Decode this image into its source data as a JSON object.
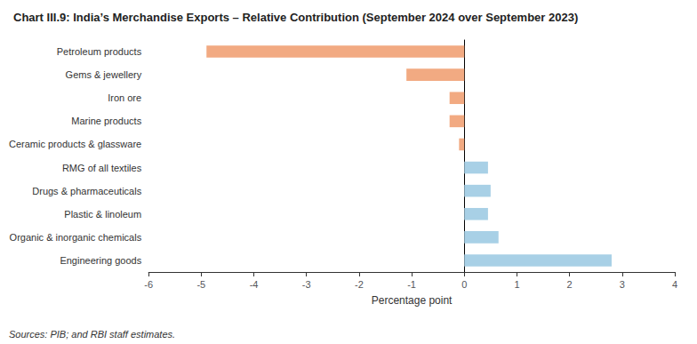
{
  "chart_data": {
    "type": "bar",
    "orientation": "horizontal",
    "title": "Chart III.9: India’s Merchandise Exports – Relative Contribution (September 2024 over September 2023)",
    "categories": [
      "Engineering goods",
      "Organic & inorganic chemicals",
      "Plastic & linoleum",
      "Drugs & pharmaceuticals",
      "RMG of all textiles",
      "Ceramic products & glassware",
      "Marine products",
      "Iron ore",
      "Gems & jewellery",
      "Petroleum products"
    ],
    "values": [
      2.8,
      0.65,
      0.45,
      0.5,
      0.45,
      -0.1,
      -0.28,
      -0.28,
      -1.1,
      -4.9
    ],
    "colors": [
      "#a8d0e6",
      "#a8d0e6",
      "#a8d0e6",
      "#a8d0e6",
      "#a8d0e6",
      "#f2aa82",
      "#f2aa82",
      "#f2aa82",
      "#f2aa82",
      "#f2aa82"
    ],
    "xlabel": "Percentage point",
    "xlim": [
      -6,
      4
    ],
    "xticks": [
      -6,
      -5,
      -4,
      -3,
      -2,
      -1,
      0,
      1,
      2,
      3,
      4
    ],
    "annotations": [
      "Sources: PIB; and RBI staff estimates."
    ],
    "grid": false
  }
}
